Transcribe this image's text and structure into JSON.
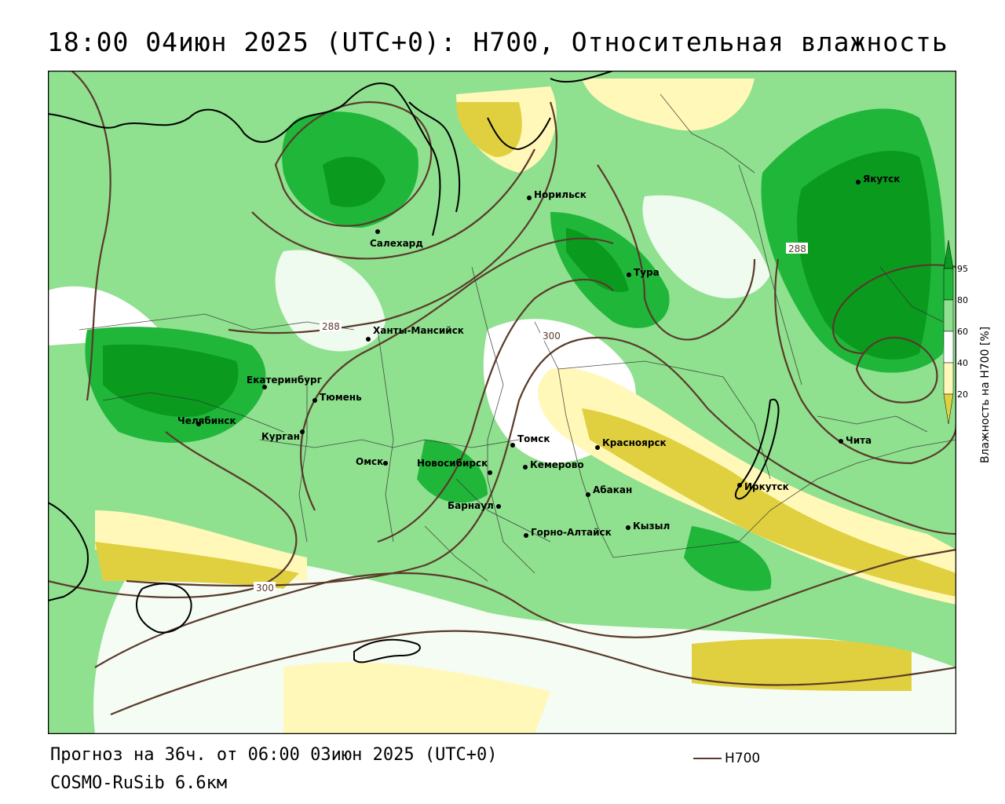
{
  "header": {
    "title": "18:00 04июн 2025 (UTC+0): H700, Относительная влажность"
  },
  "footer": {
    "forecast": "Прогноз на 36ч. от 06:00 03июн 2025 (UTC+0)",
    "model": "COSMO-RuSib 6.6км"
  },
  "legend": {
    "line_label": "H700",
    "line_color": "#5a3a2a"
  },
  "colorbar": {
    "title": "Влажность на H700 [%]",
    "ticks": [
      "95",
      "80",
      "60",
      "40",
      "20"
    ],
    "colors": {
      "above95": "#0a9a1e",
      "c80_95": "#1fb63a",
      "c60_80": "#8fe08f",
      "c40_60": "#ffffff",
      "c20_40": "#fff8b8",
      "below20": "#e0d040"
    }
  },
  "map": {
    "cities": [
      {
        "name": "Якутск"
      },
      {
        "name": "Норильск"
      },
      {
        "name": "Салехард"
      },
      {
        "name": "Тура"
      },
      {
        "name": "Ханты-Мансийск"
      },
      {
        "name": "Екатеринбург"
      },
      {
        "name": "Тюмень"
      },
      {
        "name": "Челябинск"
      },
      {
        "name": "Курган"
      },
      {
        "name": "Омск"
      },
      {
        "name": "Новосибирск"
      },
      {
        "name": "Томск"
      },
      {
        "name": "Кемерово"
      },
      {
        "name": "Красноярск"
      },
      {
        "name": "Абакан"
      },
      {
        "name": "Барнаул"
      },
      {
        "name": "Горно-Алтайск"
      },
      {
        "name": "Кызыл"
      },
      {
        "name": "Иркутск"
      },
      {
        "name": "Чита"
      }
    ],
    "contour_labels": [
      "288",
      "288",
      "300",
      "300"
    ]
  }
}
